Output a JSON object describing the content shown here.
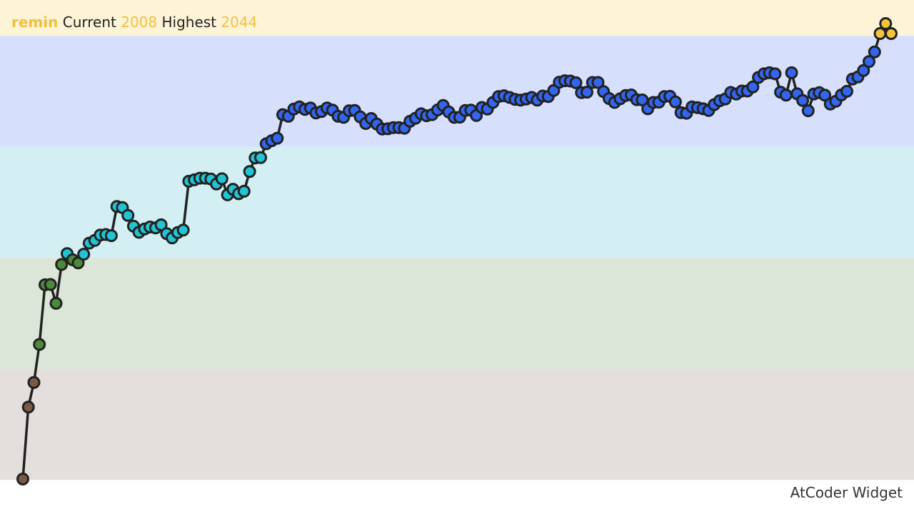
{
  "header": {
    "username": "remin",
    "current_label": "Current",
    "current_value": "2008",
    "highest_label": "Highest",
    "highest_value": "2044"
  },
  "brand": "AtCoder Widget",
  "colors": {
    "line": "#222222",
    "band_yellow": "#fdf3d6",
    "band_blue": "#d6e0fc",
    "band_cyan": "#d3eff3",
    "band_green": "#dce6d8",
    "band_brown": "#e4dedc",
    "dot_brown": "#7a5a46",
    "dot_green": "#4a8a3a",
    "dot_cyan": "#22c4d4",
    "dot_blue": "#3366ee",
    "dot_yellow": "#f4c43a",
    "username": "#f0c040"
  },
  "chart_data": {
    "type": "line",
    "ylim": [
      277,
      2129
    ],
    "bands": [
      {
        "from": 2000,
        "to": 2400,
        "color": "yellow"
      },
      {
        "from": 1600,
        "to": 2000,
        "color": "blue"
      },
      {
        "from": 1200,
        "to": 1600,
        "color": "cyan"
      },
      {
        "from": 800,
        "to": 1200,
        "color": "green"
      },
      {
        "from": 400,
        "to": 800,
        "color": "brown"
      }
    ],
    "series": [
      {
        "values": [
          403,
          662,
          751,
          888,
          1103,
          1104,
          1036,
          1176,
          1215,
          1193,
          1182,
          1213,
          1253,
          1263,
          1282,
          1284,
          1280,
          1385,
          1381,
          1353,
          1314,
          1292,
          1304,
          1311,
          1308,
          1319,
          1287,
          1272,
          1291,
          1300,
          1476,
          1481,
          1487,
          1487,
          1484,
          1466,
          1485,
          1427,
          1447,
          1431,
          1440,
          1511,
          1560,
          1561,
          1611,
          1622,
          1631,
          1716,
          1710,
          1736,
          1744,
          1735,
          1740,
          1722,
          1727,
          1740,
          1732,
          1710,
          1706,
          1730,
          1731,
          1708,
          1684,
          1702,
          1682,
          1664,
          1665,
          1669,
          1669,
          1667,
          1692,
          1703,
          1719,
          1712,
          1716,
          1733,
          1749,
          1726,
          1706,
          1707,
          1731,
          1732,
          1713,
          1742,
          1736,
          1760,
          1781,
          1784,
          1778,
          1771,
          1768,
          1772,
          1778,
          1768,
          1783,
          1781,
          1803,
          1833,
          1838,
          1837,
          1831,
          1795,
          1797,
          1832,
          1832,
          1799,
          1774,
          1760,
          1773,
          1785,
          1787,
          1770,
          1769,
          1737,
          1760,
          1761,
          1781,
          1782,
          1762,
          1723,
          1721,
          1744,
          1741,
          1737,
          1731,
          1752,
          1766,
          1772,
          1796,
          1790,
          1801,
          1801,
          1816,
          1850,
          1863,
          1867,
          1863,
          1797,
          1786,
          1867,
          1791,
          1767,
          1730,
          1790,
          1795,
          1786,
          1754,
          1764,
          1787,
          1800,
          1844,
          1852,
          1875,
          1907,
          1942,
          2008,
          2044,
          2008
        ]
      }
    ]
  }
}
